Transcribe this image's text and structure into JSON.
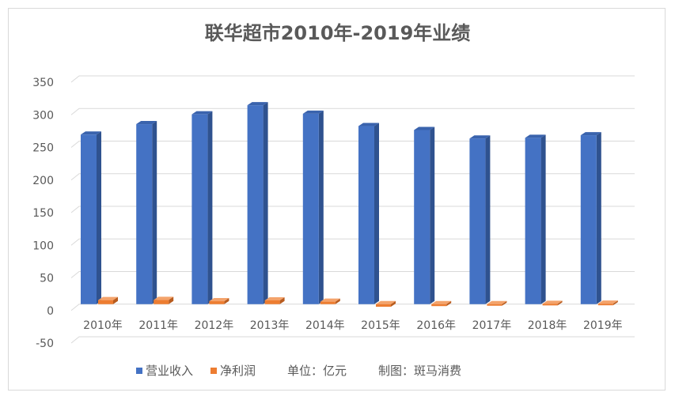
{
  "chart_data": {
    "type": "bar",
    "title": "联华超市2010年-2019年业绩",
    "categories": [
      "2010年",
      "2011年",
      "2012年",
      "2013年",
      "2014年",
      "2015年",
      "2016年",
      "2017年",
      "2018年",
      "2019年"
    ],
    "series": [
      {
        "name": "营业收入",
        "color": "#4472c4",
        "values": [
          260,
          276,
          291,
          305,
          292,
          273,
          267,
          254,
          255,
          259
        ]
      },
      {
        "name": "净利润",
        "color": "#ed7d31",
        "values": [
          6.2,
          6.5,
          4.5,
          5.8,
          3.8,
          -4.0,
          -3.0,
          -0.9,
          0.5,
          0.7
        ]
      }
    ],
    "yticks": [
      -50,
      0,
      50,
      100,
      150,
      200,
      250,
      300,
      350
    ],
    "ylim": [
      -50,
      350
    ],
    "grid": true,
    "legend": "bottom"
  },
  "notes": {
    "unit": "单位：亿元",
    "credit": "制图：斑马消费"
  }
}
